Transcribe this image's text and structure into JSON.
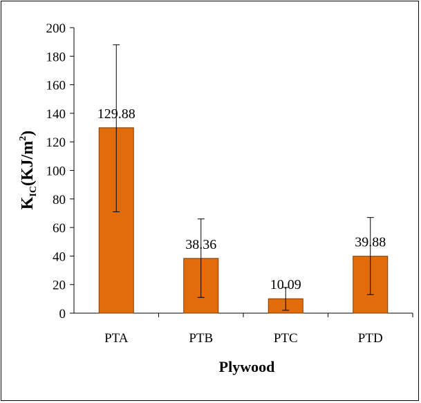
{
  "chart_data": {
    "type": "bar",
    "categories": [
      "PTA",
      "PTB",
      "PTC",
      "PTD"
    ],
    "values": [
      129.88,
      38.36,
      10.09,
      39.88
    ],
    "error_bars": {
      "upper": [
        188,
        66,
        18,
        67
      ],
      "lower": [
        71,
        11,
        2,
        13
      ]
    },
    "data_labels": [
      "129.88",
      "38.36",
      "10.09",
      "39.88"
    ],
    "xlabel": "Plywood",
    "ylabel": {
      "main": "K",
      "subscript": "IC",
      "suffix": "(KJ/m",
      "superscript": "2",
      "close": ")"
    },
    "ylim": [
      0,
      200
    ],
    "yticks": [
      0,
      20,
      40,
      60,
      80,
      100,
      120,
      140,
      160,
      180,
      200
    ],
    "ytick_labels": [
      "0",
      "20",
      "40",
      "60",
      "80",
      "100",
      "120",
      "140",
      "160",
      "180",
      "200"
    ],
    "grid": false,
    "legend": "none",
    "colors": {
      "bar_fill": "#E26B0A",
      "bar_stroke": "#7A3A06",
      "axis": "#000000"
    }
  }
}
